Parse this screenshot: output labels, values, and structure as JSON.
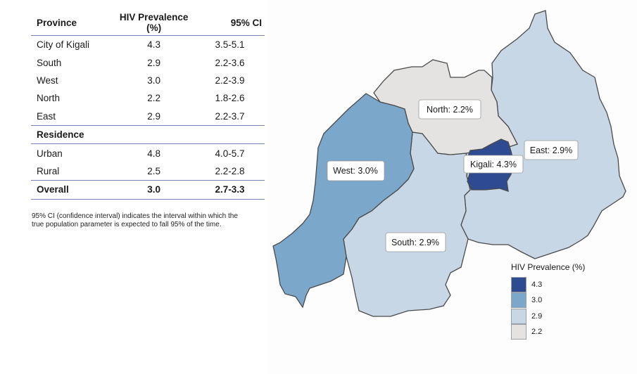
{
  "table": {
    "headers": [
      "Province",
      "HIV Prevalence (%)",
      "95% CI"
    ],
    "province_rows": [
      {
        "name": "City of Kigali",
        "prevalence": "4.3",
        "ci": "3.5-5.1"
      },
      {
        "name": "South",
        "prevalence": "2.9",
        "ci": "2.2-3.6"
      },
      {
        "name": "West",
        "prevalence": "3.0",
        "ci": "2.2-3.9"
      },
      {
        "name": "North",
        "prevalence": "2.2",
        "ci": "1.8-2.6"
      },
      {
        "name": "East",
        "prevalence": "2.9",
        "ci": "2.2-3.7"
      }
    ],
    "residence_header": "Residence",
    "residence_rows": [
      {
        "name": "Urban",
        "prevalence": "4.8",
        "ci": "4.0-5.7"
      },
      {
        "name": "Rural",
        "prevalence": "2.5",
        "ci": "2.2-2.8"
      }
    ],
    "overall": {
      "name": "Overall",
      "prevalence": "3.0",
      "ci": "2.7-3.3"
    }
  },
  "footnote": "95% CI (confidence interval) indicates the interval within which the true population parameter is expected to fall 95% of the time.",
  "map": {
    "regions": [
      {
        "id": "north",
        "label": "North: 2.2%",
        "value": 2.2,
        "color": "#e5e3e2"
      },
      {
        "id": "west",
        "label": "West: 3.0%",
        "value": 3.0,
        "color": "#7ba7cb"
      },
      {
        "id": "east",
        "label": "East: 2.9%",
        "value": 2.9,
        "color": "#c7d7e5"
      },
      {
        "id": "south",
        "label": "South: 2.9%",
        "value": 2.9,
        "color": "#c7d7e5"
      },
      {
        "id": "kigali",
        "label": "Kigali: 4.3%",
        "value": 4.3,
        "color": "#2e4a90"
      }
    ],
    "legend": {
      "title": "HIV Prevalence (%)",
      "items": [
        {
          "label": "4.3",
          "color": "#2e4a90"
        },
        {
          "label": "3.0",
          "color": "#7ba7cb"
        },
        {
          "label": "2.9",
          "color": "#c7d7e5"
        },
        {
          "label": "2.2",
          "color": "#e5e3e2"
        }
      ]
    }
  }
}
